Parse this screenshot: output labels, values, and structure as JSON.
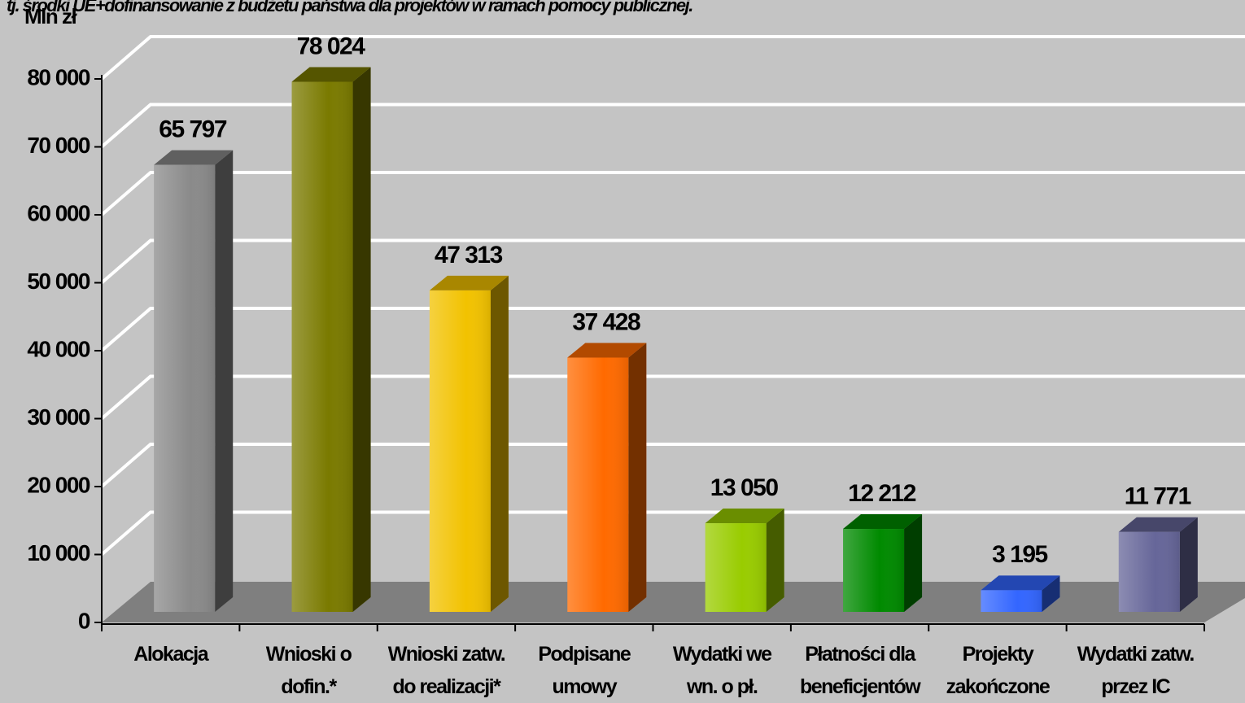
{
  "chart_data": {
    "type": "bar3d",
    "subtitle": "tj. środki UE+dofinansowanie z budżetu państwa dla projektów w ramach pomocy publicznej.",
    "y_label": "Mln zł",
    "categories": [
      "Alokacja",
      "Wnioski o dofin.*",
      "Wnioski zatw. do realizacji*",
      "Podpisane umowy",
      "Wydatki we wn. o pł.",
      "Płatności dla beneficjentów",
      "Projekty zakończone",
      "Wydatki zatw. przez IC"
    ],
    "values": [
      65797,
      78024,
      47313,
      37428,
      13050,
      12212,
      3195,
      11771
    ],
    "value_labels": [
      "65 797",
      "78 024",
      "47 313",
      "37 428",
      "13 050",
      "12 212",
      "3 195",
      "11 771"
    ],
    "colors": [
      "#8a8a8a",
      "#7a7a00",
      "#f2c200",
      "#ff6a00",
      "#99cc00",
      "#008a00",
      "#3366ff",
      "#666699"
    ],
    "ylim": [
      0,
      80000
    ],
    "yticks": [
      0,
      {
        "value": 10000,
        "label": "10 000"
      },
      {
        "value": 20000,
        "label": "20 000"
      },
      {
        "value": 30000,
        "label": "30 000"
      },
      {
        "value": 40000,
        "label": "40 000"
      },
      {
        "value": 50000,
        "label": "50 000"
      },
      {
        "value": 60000,
        "label": "60 000"
      },
      {
        "value": 70000,
        "label": "70 000"
      },
      {
        "value": 80000,
        "label": "80 000"
      }
    ],
    "grid": true
  }
}
